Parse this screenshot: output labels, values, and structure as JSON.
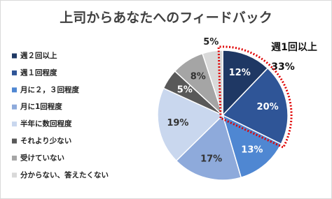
{
  "chart_data": {
    "type": "pie",
    "title": "上司からあなたへのフィードバック",
    "categories": [
      "週２回以上",
      "週１回程度",
      "月に２，３回程度",
      "月に1回程度",
      "半年に数回程度",
      "それより少ない",
      "受けていない",
      "分からない、答えたくない"
    ],
    "values": [
      12,
      20,
      13,
      17,
      19,
      5,
      8,
      5
    ],
    "value_labels": [
      "12%",
      "20%",
      "13%",
      "17%",
      "19%",
      "5%",
      "8%",
      "5%"
    ],
    "colors": [
      "#1f3864",
      "#2f5597",
      "#4f87d2",
      "#8eaadb",
      "#c9d7ee",
      "#595959",
      "#a5a5a5",
      "#d9d9d9"
    ],
    "annotations": [
      "週1回以上",
      "33%"
    ],
    "legend": "left"
  }
}
